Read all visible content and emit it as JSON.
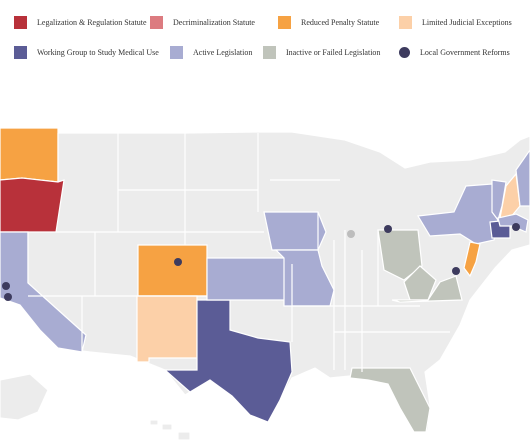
{
  "legend": {
    "items": [
      {
        "label": "Legalization & Regulation Statute",
        "color": "#b8313a",
        "shape": "square"
      },
      {
        "label": "Decriminalization Statute",
        "color": "#dc7b80",
        "shape": "square"
      },
      {
        "label": "Reduced Penalty Statute",
        "color": "#f6a243",
        "shape": "square"
      },
      {
        "label": "Limited Judicial Exceptions",
        "color": "#fcd0a8",
        "shape": "square"
      },
      {
        "label": "Working Group to Study Medical Use",
        "color": "#5b5c96",
        "shape": "square"
      },
      {
        "label": "Active Legislation",
        "color": "#a8acd2",
        "shape": "square"
      },
      {
        "label": "Inactive or Failed Legislation",
        "color": "#c0c4bb",
        "shape": "square"
      },
      {
        "label": "Local Government Reforms",
        "color": "#3d3b5e",
        "shape": "circle"
      }
    ]
  },
  "map": {
    "base_color": "#ececec",
    "border_color": "#ffffff",
    "states": [
      {
        "name": "Washington",
        "status": "Reduced Penalty Statute",
        "color": "#f6a243"
      },
      {
        "name": "Oregon",
        "status": "Legalization & Regulation Statute",
        "color": "#b8313a"
      },
      {
        "name": "California",
        "status": "Active Legislation",
        "color": "#a8acd2"
      },
      {
        "name": "Colorado",
        "status": "Reduced Penalty Statute",
        "color": "#f6a243"
      },
      {
        "name": "New Mexico",
        "status": "Limited Judicial Exceptions",
        "color": "#fcd0a8"
      },
      {
        "name": "Texas",
        "status": "Working Group to Study Medical Use",
        "color": "#5b5c96"
      },
      {
        "name": "Kansas",
        "status": "Active Legislation",
        "color": "#a8acd2"
      },
      {
        "name": "Iowa",
        "status": "Active Legislation",
        "color": "#a8acd2"
      },
      {
        "name": "Missouri",
        "status": "Active Legislation",
        "color": "#a8acd2"
      },
      {
        "name": "Ohio",
        "status": "Inactive or Failed Legislation",
        "color": "#c0c4bb"
      },
      {
        "name": "West Virginia",
        "status": "Inactive or Failed Legislation",
        "color": "#c0c4bb"
      },
      {
        "name": "Virginia",
        "status": "Inactive or Failed Legislation",
        "color": "#c0c4bb"
      },
      {
        "name": "Florida",
        "status": "Inactive or Failed Legislation",
        "color": "#c0c4bb"
      },
      {
        "name": "New York",
        "status": "Active Legislation",
        "color": "#a8acd2"
      },
      {
        "name": "New Jersey",
        "status": "Reduced Penalty Statute",
        "color": "#f6a243"
      },
      {
        "name": "Connecticut",
        "status": "Working Group to Study Medical Use",
        "color": "#5b5c96"
      },
      {
        "name": "New Hampshire",
        "status": "Limited Judicial Exceptions",
        "color": "#fcd0a8"
      },
      {
        "name": "Vermont",
        "status": "Active Legislation",
        "color": "#a8acd2"
      },
      {
        "name": "Massachusetts",
        "status": "Active Legislation",
        "color": "#a8acd2"
      },
      {
        "name": "Maine",
        "status": "Active Legislation",
        "color": "#a8acd2"
      }
    ],
    "local_reform_markers": [
      "Denver, Colorado",
      "Detroit, Michigan",
      "Washington, D.C.",
      "Boston, Massachusetts",
      "Oakland, California",
      "Santa Cruz, California"
    ]
  }
}
